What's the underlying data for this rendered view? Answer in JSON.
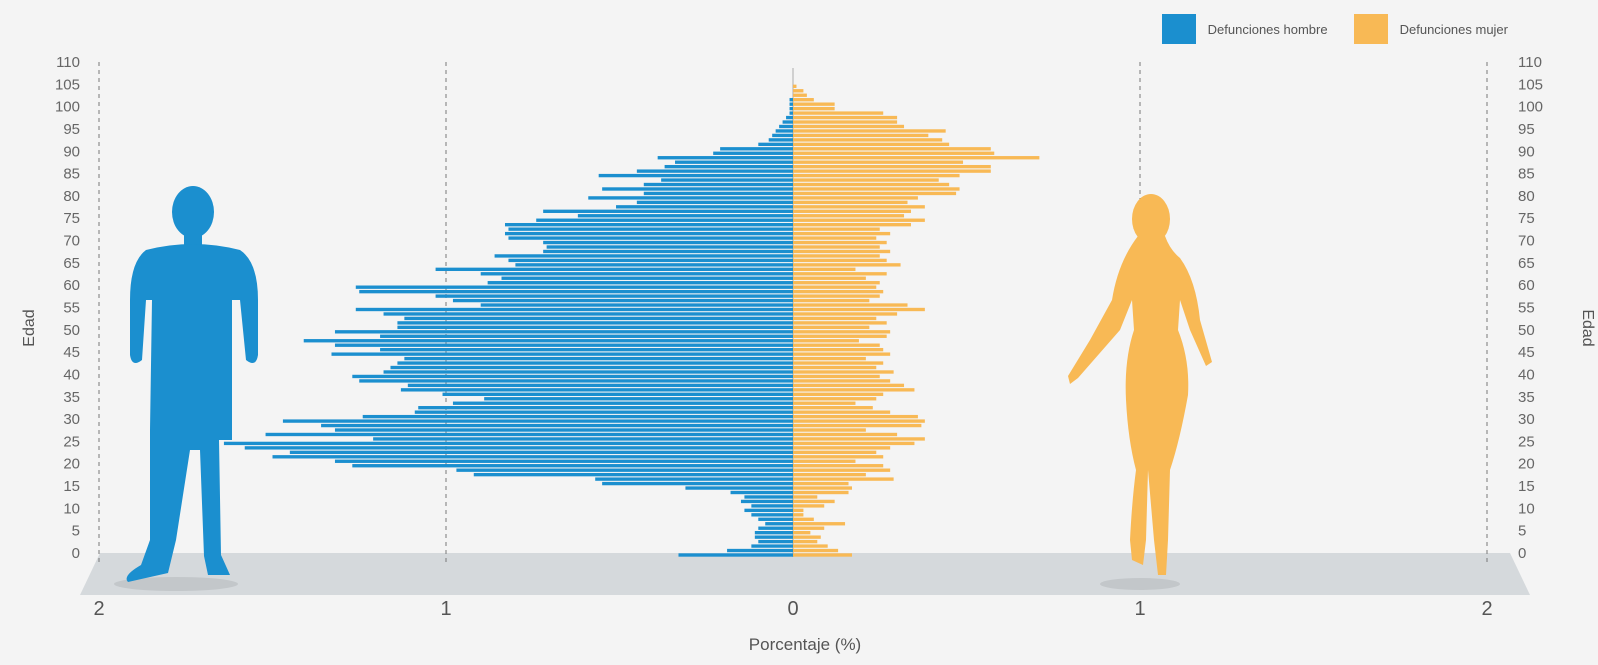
{
  "legend": {
    "male_label": "Defunciones hombre",
    "female_label": "Defunciones mujer"
  },
  "colors": {
    "male": "#1b8fcf",
    "female": "#f8b955",
    "floor": "#d5d9dc",
    "text": "#555555",
    "background": "#f4f4f4"
  },
  "chart_data": {
    "type": "bar",
    "orientation": "horizontal-population-pyramid",
    "xlabel": "Porcentaje (%)",
    "ylabel": "Edad",
    "x_ticks": [
      "2",
      "1",
      "0",
      "1",
      "2"
    ],
    "xlim": [
      -2,
      2
    ],
    "y_ticks": [
      0,
      5,
      10,
      15,
      20,
      25,
      30,
      35,
      40,
      45,
      50,
      55,
      60,
      65,
      70,
      75,
      80,
      85,
      90,
      95,
      100,
      105,
      110
    ],
    "ylim": [
      0,
      110
    ],
    "grid": "dashed vertical lines at 2, 1, 1, 2",
    "legend_position": "top-right",
    "ages": [
      0,
      1,
      2,
      3,
      4,
      5,
      6,
      7,
      8,
      9,
      10,
      11,
      12,
      13,
      14,
      15,
      16,
      17,
      18,
      19,
      20,
      21,
      22,
      23,
      24,
      25,
      26,
      27,
      28,
      29,
      30,
      31,
      32,
      33,
      34,
      35,
      36,
      37,
      38,
      39,
      40,
      41,
      42,
      43,
      44,
      45,
      46,
      47,
      48,
      49,
      50,
      51,
      52,
      53,
      54,
      55,
      56,
      57,
      58,
      59,
      60,
      61,
      62,
      63,
      64,
      65,
      66,
      67,
      68,
      69,
      70,
      71,
      72,
      73,
      74,
      75,
      76,
      77,
      78,
      79,
      80,
      81,
      82,
      83,
      84,
      85,
      86,
      87,
      88,
      89,
      90,
      91,
      92,
      93,
      94,
      95,
      96,
      97,
      98,
      99,
      100,
      101,
      102,
      103,
      104,
      105
    ],
    "series": [
      {
        "name": "Defunciones hombre",
        "values": [
          0.33,
          0.19,
          0.12,
          0.1,
          0.11,
          0.11,
          0.1,
          0.08,
          0.1,
          0.12,
          0.14,
          0.12,
          0.15,
          0.14,
          0.18,
          0.31,
          0.55,
          0.57,
          0.92,
          0.97,
          1.27,
          1.32,
          1.5,
          1.45,
          1.58,
          1.64,
          1.21,
          1.52,
          1.32,
          1.36,
          1.47,
          1.24,
          1.09,
          1.08,
          0.98,
          0.89,
          1.01,
          1.13,
          1.11,
          1.25,
          1.27,
          1.18,
          1.16,
          1.14,
          1.12,
          1.33,
          1.19,
          1.32,
          1.41,
          1.19,
          1.32,
          1.14,
          1.14,
          1.12,
          1.18,
          1.26,
          0.9,
          0.98,
          1.03,
          1.25,
          1.26,
          0.88,
          0.84,
          0.9,
          1.03,
          0.8,
          0.82,
          0.86,
          0.72,
          0.71,
          0.72,
          0.82,
          0.83,
          0.82,
          0.83,
          0.74,
          0.62,
          0.72,
          0.51,
          0.45,
          0.59,
          0.43,
          0.55,
          0.43,
          0.38,
          0.56,
          0.45,
          0.37,
          0.34,
          0.39,
          0.23,
          0.21,
          0.1,
          0.07,
          0.06,
          0.05,
          0.04,
          0.03,
          0.02,
          0.01,
          0.01,
          0.01,
          0.01,
          0.0,
          0.0,
          0.0
        ]
      },
      {
        "name": "Defunciones mujer",
        "values": [
          0.17,
          0.13,
          0.1,
          0.07,
          0.08,
          0.05,
          0.09,
          0.15,
          0.06,
          0.03,
          0.03,
          0.09,
          0.12,
          0.07,
          0.16,
          0.17,
          0.16,
          0.29,
          0.21,
          0.28,
          0.26,
          0.18,
          0.26,
          0.24,
          0.28,
          0.35,
          0.38,
          0.3,
          0.21,
          0.37,
          0.38,
          0.36,
          0.28,
          0.23,
          0.18,
          0.24,
          0.26,
          0.35,
          0.32,
          0.28,
          0.25,
          0.29,
          0.24,
          0.26,
          0.21,
          0.28,
          0.26,
          0.25,
          0.19,
          0.27,
          0.28,
          0.22,
          0.27,
          0.24,
          0.3,
          0.38,
          0.33,
          0.22,
          0.25,
          0.26,
          0.24,
          0.25,
          0.21,
          0.27,
          0.18,
          0.31,
          0.27,
          0.25,
          0.28,
          0.25,
          0.27,
          0.24,
          0.28,
          0.25,
          0.34,
          0.38,
          0.32,
          0.34,
          0.38,
          0.33,
          0.36,
          0.47,
          0.48,
          0.45,
          0.42,
          0.48,
          0.57,
          0.57,
          0.49,
          0.71,
          0.58,
          0.57,
          0.45,
          0.43,
          0.39,
          0.44,
          0.32,
          0.3,
          0.3,
          0.26,
          0.12,
          0.12,
          0.06,
          0.04,
          0.03,
          0.01
        ]
      }
    ]
  }
}
